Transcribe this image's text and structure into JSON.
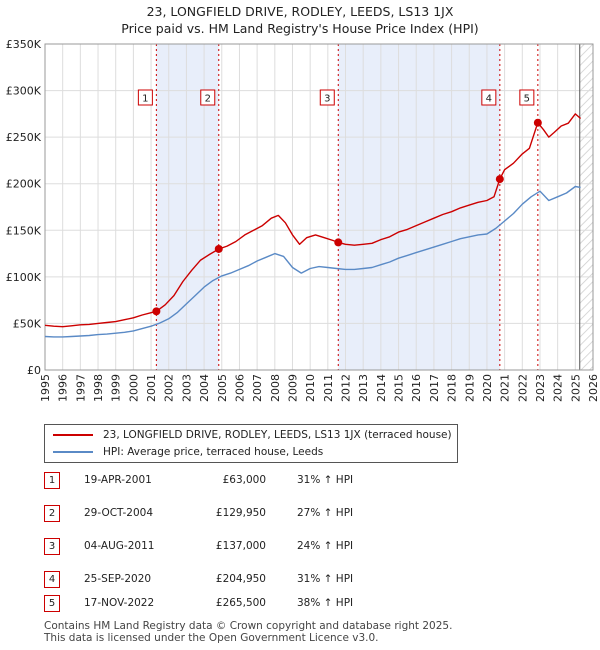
{
  "chart_data": {
    "type": "line",
    "title": "23, LONGFIELD DRIVE, RODLEY, LEEDS, LS13 1JX",
    "subtitle": "Price paid vs. HM Land Registry's House Price Index (HPI)",
    "xlim": [
      1995,
      2026
    ],
    "ylim": [
      0,
      350000
    ],
    "yticks": [
      0,
      50000,
      100000,
      150000,
      200000,
      250000,
      300000,
      350000
    ],
    "ytick_labels": [
      "£0",
      "£50K",
      "£100K",
      "£150K",
      "£200K",
      "£250K",
      "£300K",
      "£350K"
    ],
    "xticks": [
      1995,
      1996,
      1997,
      1998,
      1999,
      2000,
      2001,
      2002,
      2003,
      2004,
      2005,
      2006,
      2007,
      2008,
      2009,
      2010,
      2011,
      2012,
      2013,
      2014,
      2015,
      2016,
      2017,
      2018,
      2019,
      2020,
      2021,
      2022,
      2023,
      2024,
      2025,
      2026
    ],
    "xtick_labels": [
      "1995",
      "1996",
      "1997",
      "1998",
      "1999",
      "2000",
      "2001",
      "2002",
      "2003",
      "2004",
      "2005",
      "2006",
      "2007",
      "2008",
      "2009",
      "2010",
      "2011",
      "2012",
      "2013",
      "2014",
      "2015",
      "2016",
      "2017",
      "2018",
      "2019",
      "2020",
      "2021",
      "2022",
      "2023",
      "2024",
      "2025",
      "2026"
    ],
    "forecast_start": 2025.25,
    "series": [
      {
        "name": "23, LONGFIELD DRIVE, RODLEY, LEEDS, LS13 1JX (terraced house)",
        "color": "#cc0000",
        "x": [
          1995.0,
          1995.5,
          1996.0,
          1996.5,
          1997.0,
          1997.5,
          1998.0,
          1998.5,
          1999.0,
          1999.5,
          2000.0,
          2000.5,
          2001.0,
          2001.3,
          2001.8,
          2002.3,
          2002.8,
          2003.3,
          2003.8,
          2004.3,
          2004.83,
          2005.3,
          2005.8,
          2006.3,
          2006.8,
          2007.3,
          2007.8,
          2008.2,
          2008.6,
          2009.0,
          2009.4,
          2009.8,
          2010.3,
          2010.8,
          2011.3,
          2011.59,
          2012.0,
          2012.5,
          2013.0,
          2013.5,
          2014.0,
          2014.5,
          2015.0,
          2015.5,
          2016.0,
          2016.5,
          2017.0,
          2017.5,
          2018.0,
          2018.5,
          2019.0,
          2019.5,
          2020.0,
          2020.4,
          2020.73,
          2021.0,
          2021.5,
          2022.0,
          2022.4,
          2022.88,
          2023.2,
          2023.5,
          2023.8,
          2024.2,
          2024.6,
          2025.0,
          2025.3
        ],
        "values": [
          48000,
          47000,
          46500,
          47500,
          48500,
          49000,
          50000,
          51000,
          52000,
          54000,
          56000,
          59000,
          61500,
          63000,
          70000,
          80000,
          95000,
          107000,
          118000,
          124000,
          129950,
          133000,
          138000,
          145000,
          150000,
          155000,
          163000,
          166000,
          158000,
          145000,
          135000,
          142000,
          145000,
          142000,
          139000,
          137000,
          135000,
          134000,
          135000,
          136000,
          140000,
          143000,
          148000,
          151000,
          155000,
          159000,
          163000,
          167000,
          170000,
          174000,
          177000,
          180000,
          182000,
          186000,
          204950,
          215000,
          222000,
          232000,
          238000,
          265500,
          258000,
          250000,
          255000,
          262000,
          265000,
          275000,
          270000
        ]
      },
      {
        "name": "HPI: Average price, terraced house, Leeds",
        "color": "#5a8ac6",
        "x": [
          1995.0,
          1995.5,
          1996.0,
          1996.5,
          1997.0,
          1997.5,
          1998.0,
          1998.5,
          1999.0,
          1999.5,
          2000.0,
          2000.5,
          2001.0,
          2001.5,
          2002.0,
          2002.5,
          2003.0,
          2003.5,
          2004.0,
          2004.5,
          2005.0,
          2005.5,
          2006.0,
          2006.5,
          2007.0,
          2007.5,
          2008.0,
          2008.5,
          2009.0,
          2009.5,
          2010.0,
          2010.5,
          2011.0,
          2011.5,
          2012.0,
          2012.5,
          2013.0,
          2013.5,
          2014.0,
          2014.5,
          2015.0,
          2015.5,
          2016.0,
          2016.5,
          2017.0,
          2017.5,
          2018.0,
          2018.5,
          2019.0,
          2019.5,
          2020.0,
          2020.5,
          2021.0,
          2021.5,
          2022.0,
          2022.5,
          2023.0,
          2023.5,
          2024.0,
          2024.5,
          2025.0,
          2025.3
        ],
        "values": [
          36000,
          35500,
          35500,
          36000,
          36500,
          37000,
          38000,
          38500,
          39500,
          40500,
          42000,
          44500,
          47000,
          50500,
          55000,
          62000,
          71000,
          80000,
          89000,
          96000,
          101000,
          104000,
          108000,
          112000,
          117000,
          121000,
          125000,
          122000,
          110000,
          104000,
          109000,
          111000,
          110000,
          109000,
          108000,
          108000,
          109000,
          110000,
          113000,
          116000,
          120000,
          123000,
          126000,
          129000,
          132000,
          135000,
          138000,
          141000,
          143000,
          145000,
          146000,
          152000,
          160000,
          168000,
          178000,
          186000,
          192000,
          182000,
          186000,
          190000,
          197000,
          196000
        ]
      }
    ],
    "sales": [
      {
        "label": "1",
        "year": 2001.3,
        "price": 63000
      },
      {
        "label": "2",
        "year": 2004.83,
        "price": 129950
      },
      {
        "label": "3",
        "year": 2011.59,
        "price": 137000
      },
      {
        "label": "4",
        "year": 2020.73,
        "price": 204950
      },
      {
        "label": "5",
        "year": 2022.88,
        "price": 265500
      }
    ]
  },
  "legend": {
    "red_label": "23, LONGFIELD DRIVE, RODLEY, LEEDS, LS13 1JX (terraced house)",
    "blue_label": "HPI: Average price, terraced house, Leeds"
  },
  "sales_table": [
    {
      "num": "1",
      "date": "19-APR-2001",
      "price": "£63,000",
      "hpi": "31% ↑ HPI"
    },
    {
      "num": "2",
      "date": "29-OCT-2004",
      "price": "£129,950",
      "hpi": "27% ↑ HPI"
    },
    {
      "num": "3",
      "date": "04-AUG-2011",
      "price": "£137,000",
      "hpi": "24% ↑ HPI"
    },
    {
      "num": "4",
      "date": "25-SEP-2020",
      "price": "£204,950",
      "hpi": "31% ↑ HPI"
    },
    {
      "num": "5",
      "date": "17-NOV-2022",
      "price": "£265,500",
      "hpi": "38% ↑ HPI"
    }
  ],
  "footer": {
    "line1": "Contains HM Land Registry data © Crown copyright and database right 2025.",
    "line2": "This data is licensed under the Open Government Licence v3.0."
  },
  "colors": {
    "red": "#cc0000",
    "blue": "#5a8ac6",
    "shade": "#e8eefa",
    "grid": "#dddddd"
  }
}
